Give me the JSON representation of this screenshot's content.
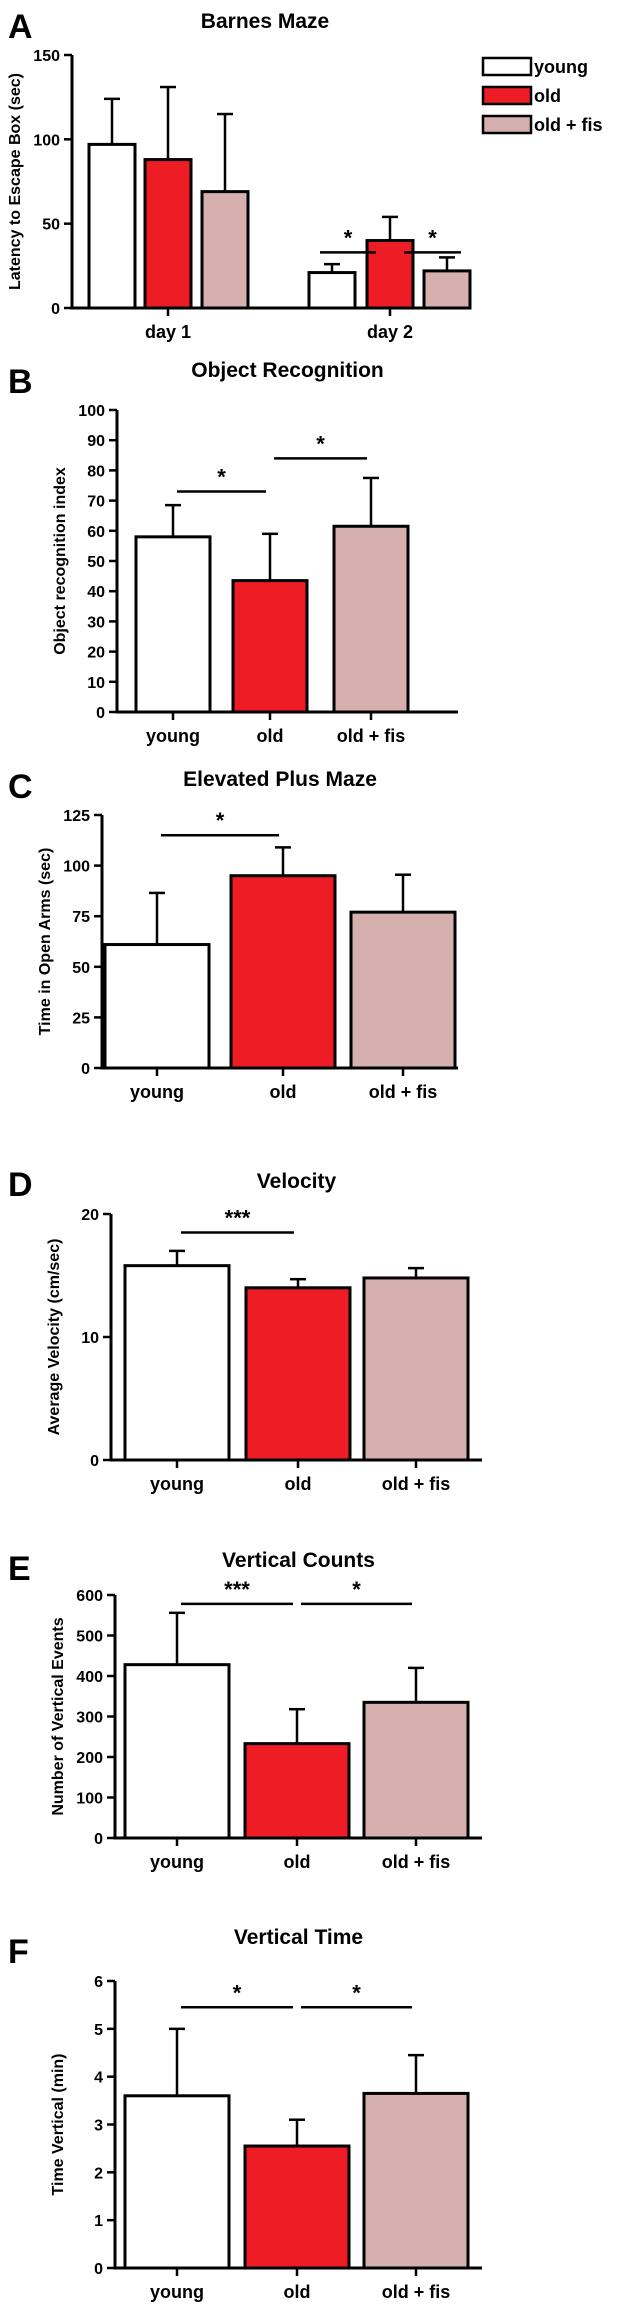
{
  "colors": {
    "young": "#ffffff",
    "old": "#ee1c25",
    "old_fis": "#d5b0ae",
    "stroke": "#000000"
  },
  "chart_data": [
    {
      "letter": "A",
      "type": "bar",
      "title": "Barnes Maze",
      "ylabel": "Latency to Escape Box (sec)",
      "ylim": [
        0,
        150
      ],
      "yticks": [
        0,
        50,
        100,
        150
      ],
      "categories": [
        "day 1",
        "day 2"
      ],
      "series": [
        {
          "name": "young",
          "key": "young",
          "values": [
            97,
            21
          ],
          "errors": [
            27,
            5
          ]
        },
        {
          "name": "old",
          "key": "old",
          "values": [
            88,
            40
          ],
          "errors": [
            43,
            14
          ]
        },
        {
          "name": "old + fis",
          "key": "old_fis",
          "values": [
            69,
            22
          ],
          "errors": [
            46,
            8
          ]
        }
      ],
      "significance": [
        {
          "category": 1,
          "from": 0,
          "to": 1,
          "level": 33,
          "label": "*"
        },
        {
          "category": 1,
          "from": 1,
          "to": 2,
          "level": 33,
          "label": "*"
        }
      ],
      "legend": {
        "position": "top-right",
        "entries": [
          "young",
          "old",
          "old + fis"
        ]
      }
    },
    {
      "letter": "B",
      "type": "bar",
      "title": "Object Recognition",
      "ylabel": "Object recognition index",
      "ylim": [
        0,
        100
      ],
      "yticks": [
        0,
        10,
        20,
        30,
        40,
        50,
        60,
        70,
        80,
        90,
        100
      ],
      "categories": [
        "young",
        "old",
        "old + fis"
      ],
      "keys": [
        "young",
        "old",
        "old_fis"
      ],
      "values": [
        58,
        43.5,
        61.5
      ],
      "errors": [
        10.5,
        15.5,
        16
      ],
      "significance": [
        {
          "from": 0,
          "to": 1,
          "level": 73,
          "label": "*"
        },
        {
          "from": 1,
          "to": 2,
          "level": 84,
          "label": "*"
        }
      ]
    },
    {
      "letter": "C",
      "type": "bar",
      "title": "Elevated Plus Maze",
      "ylabel": "Time in Open Arms (sec)",
      "ylim": [
        0,
        125
      ],
      "yticks": [
        0,
        25,
        50,
        75,
        100,
        125
      ],
      "categories": [
        "young",
        "old",
        "old + fis"
      ],
      "keys": [
        "young",
        "old",
        "old_fis"
      ],
      "values": [
        61,
        95,
        77
      ],
      "errors": [
        25.5,
        14,
        18.5
      ],
      "significance": [
        {
          "from": 0,
          "to": 1,
          "level": 115,
          "label": "*"
        }
      ]
    },
    {
      "letter": "D",
      "type": "bar",
      "title": "Velocity",
      "ylabel": "Average Velocity (cm/sec)",
      "ylim": [
        0,
        20
      ],
      "yticks": [
        0,
        10,
        20
      ],
      "categories": [
        "young",
        "old",
        "old + fis"
      ],
      "keys": [
        "young",
        "old",
        "old_fis"
      ],
      "values": [
        15.8,
        14,
        14.8
      ],
      "errors": [
        1.2,
        0.7,
        0.8
      ],
      "significance": [
        {
          "from": 0,
          "to": 1,
          "level": 18.5,
          "label": "***"
        }
      ]
    },
    {
      "letter": "E",
      "type": "bar",
      "title": "Vertical Counts",
      "ylabel": "Number of Vertical Events",
      "ylim": [
        0,
        600
      ],
      "yticks": [
        0,
        100,
        200,
        300,
        400,
        500,
        600
      ],
      "categories": [
        "young",
        "old",
        "old + fis"
      ],
      "keys": [
        "young",
        "old",
        "old_fis"
      ],
      "values": [
        428,
        233,
        335
      ],
      "errors": [
        128,
        85,
        85
      ],
      "significance": [
        {
          "from": 0,
          "to": 1,
          "level": 578,
          "label": "***"
        },
        {
          "from": 1,
          "to": 2,
          "level": 578,
          "label": "*"
        }
      ]
    },
    {
      "letter": "F",
      "type": "bar",
      "title": "Vertical Time",
      "ylabel": "Time Vertical (min)",
      "ylim": [
        0,
        6
      ],
      "yticks": [
        0,
        1,
        2,
        3,
        4,
        5,
        6
      ],
      "categories": [
        "young",
        "old",
        "old + fis"
      ],
      "keys": [
        "young",
        "old",
        "old_fis"
      ],
      "values": [
        3.6,
        2.55,
        3.65
      ],
      "errors": [
        1.4,
        0.55,
        0.8
      ],
      "significance": [
        {
          "from": 0,
          "to": 1,
          "level": 5.45,
          "label": "*"
        },
        {
          "from": 1,
          "to": 2,
          "level": 5.45,
          "label": "*"
        }
      ]
    }
  ]
}
